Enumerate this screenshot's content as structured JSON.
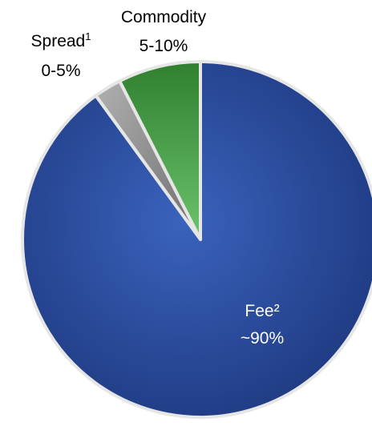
{
  "chart_data": {
    "type": "pie",
    "title": "",
    "slices": [
      {
        "name": "Fee",
        "marker": "²",
        "range_label": "~90%",
        "value": 90,
        "color": "#27489a",
        "label_color": "#ffffff"
      },
      {
        "name": "Spread",
        "marker": "1",
        "range_label": "0-5%",
        "value": 2.5,
        "color": "#8f8f8f",
        "label_color": "#000000"
      },
      {
        "name": "Commodity",
        "marker": "",
        "range_label": "5-10%",
        "value": 7.5,
        "color": "#3f9a3f",
        "label_color": "#000000"
      }
    ],
    "start": "12 o'clock",
    "direction": "clockwise",
    "legend": "none"
  }
}
